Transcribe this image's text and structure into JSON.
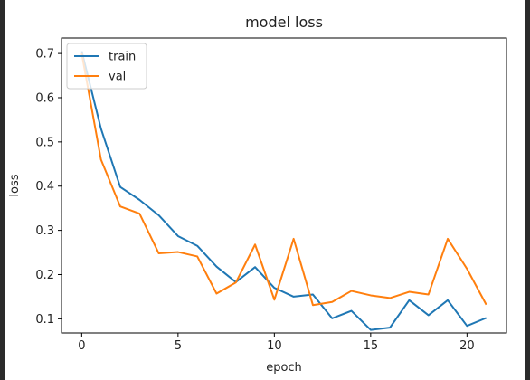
{
  "chart_data": {
    "type": "line",
    "title": "model loss",
    "xlabel": "epoch",
    "ylabel": "loss",
    "xlim": [
      -1.05,
      22.05
    ],
    "ylim": [
      0.068,
      0.735
    ],
    "xticks": [
      0,
      5,
      10,
      15,
      20
    ],
    "yticks": [
      0.1,
      0.2,
      0.3,
      0.4,
      0.5,
      0.6,
      0.7
    ],
    "ytick_labels": [
      "0.1",
      "0.2",
      "0.3",
      "0.4",
      "0.5",
      "0.6",
      "0.7"
    ],
    "legend": {
      "placement": "upper-left"
    },
    "x": [
      0,
      1,
      2,
      3,
      4,
      5,
      6,
      7,
      8,
      9,
      10,
      11,
      12,
      13,
      14,
      15,
      16,
      17,
      18,
      19,
      20,
      21
    ],
    "series": [
      {
        "name": "train",
        "color": "#1f77b4",
        "values": [
          0.705,
          0.53,
          0.398,
          0.369,
          0.334,
          0.287,
          0.265,
          0.218,
          0.183,
          0.217,
          0.17,
          0.15,
          0.155,
          0.101,
          0.118,
          0.075,
          0.08,
          0.142,
          0.108,
          0.142,
          0.084,
          0.102
        ]
      },
      {
        "name": "val",
        "color": "#ff7f0e",
        "values": [
          0.7,
          0.46,
          0.354,
          0.338,
          0.248,
          0.251,
          0.241,
          0.157,
          0.182,
          0.268,
          0.143,
          0.281,
          0.131,
          0.138,
          0.163,
          0.153,
          0.147,
          0.161,
          0.155,
          0.281,
          0.213,
          0.132
        ]
      }
    ]
  }
}
